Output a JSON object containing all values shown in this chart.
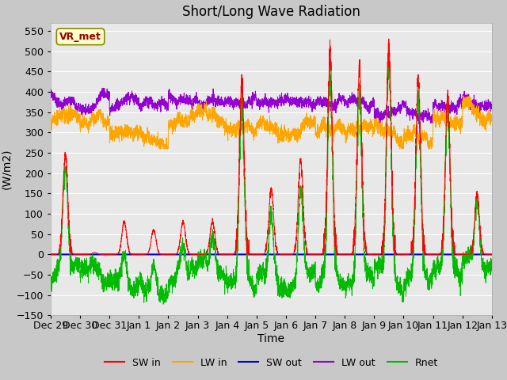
{
  "title": "Short/Long Wave Radiation",
  "xlabel": "Time",
  "ylabel": "(W/m2)",
  "ylim": [
    -150,
    570
  ],
  "yticks": [
    -150,
    -100,
    -50,
    0,
    50,
    100,
    150,
    200,
    250,
    300,
    350,
    400,
    450,
    500,
    550
  ],
  "x_labels": [
    "Dec 29",
    "Dec 30",
    "Dec 31",
    "Jan 1",
    "Jan 2",
    "Jan 3",
    "Jan 4",
    "Jan 5",
    "Jan 6",
    "Jan 7",
    "Jan 8",
    "Jan 9",
    "Jan 10",
    "Jan 11",
    "Jan 12",
    "Jan 13"
  ],
  "colors": {
    "SW_in": "#ff0000",
    "LW_in": "#ffa500",
    "SW_out": "#0000cd",
    "LW_out": "#9400d3",
    "Rnet": "#00bb00"
  },
  "legend_labels": [
    "SW in",
    "LW in",
    "SW out",
    "LW out",
    "Rnet"
  ],
  "annotation_text": "VR_met",
  "annotation_fg": "#990000",
  "annotation_bg": "#ffffcc",
  "annotation_edge": "#888800",
  "bg_color": "#e8e8e8",
  "fig_color": "#c8c8c8",
  "title_fontsize": 12,
  "label_fontsize": 10,
  "tick_fontsize": 9,
  "n_points": 4320,
  "days": 15,
  "seed": 7
}
